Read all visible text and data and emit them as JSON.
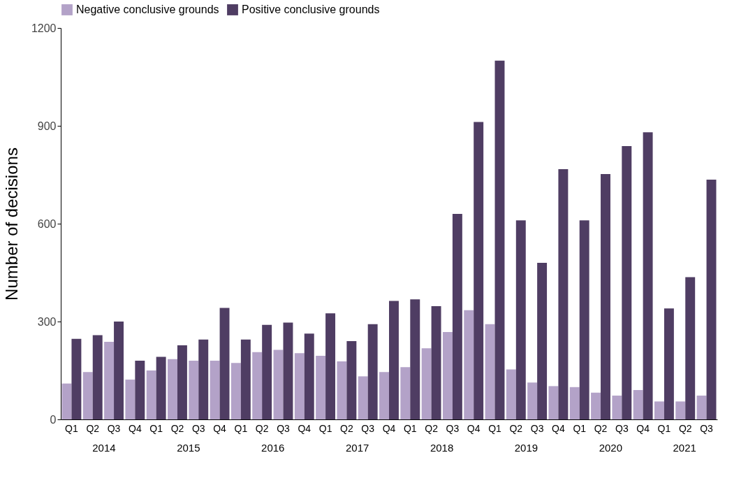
{
  "chart_data": {
    "type": "bar",
    "ylabel": "Number of decisions",
    "categories": [
      "Q1",
      "Q2",
      "Q3",
      "Q4",
      "Q1",
      "Q2",
      "Q3",
      "Q4",
      "Q1",
      "Q2",
      "Q3",
      "Q4",
      "Q1",
      "Q2",
      "Q3",
      "Q4",
      "Q1",
      "Q2",
      "Q3",
      "Q4",
      "Q1",
      "Q2",
      "Q3",
      "Q4",
      "Q1",
      "Q2",
      "Q3",
      "Q4",
      "Q1",
      "Q2",
      "Q3"
    ],
    "series": [
      {
        "name": "Negative conclusive grounds",
        "color": "#b3a2c8",
        "values": [
          110,
          145,
          238,
          122,
          150,
          185,
          180,
          180,
          173,
          206,
          213,
          203,
          195,
          178,
          132,
          145,
          160,
          218,
          268,
          335,
          292,
          153,
          113,
          102,
          99,
          82,
          73,
          90,
          55,
          55,
          73
        ]
      },
      {
        "name": "Positive conclusive grounds",
        "color": "#4f3d63",
        "values": [
          247,
          258,
          300,
          180,
          192,
          227,
          245,
          342,
          245,
          290,
          297,
          263,
          325,
          240,
          292,
          363,
          368,
          347,
          630,
          912,
          1100,
          610,
          480,
          767,
          610,
          752,
          838,
          880,
          340,
          436,
          735
        ]
      }
    ],
    "annotations": [
      "2014",
      "2015",
      "2016",
      "2017",
      "2018",
      "2019",
      "2020",
      "2021"
    ],
    "ylim": [
      0,
      1200
    ],
    "yticks": [
      0,
      300,
      600,
      900,
      1200
    ],
    "grid": false,
    "legend": "top"
  }
}
